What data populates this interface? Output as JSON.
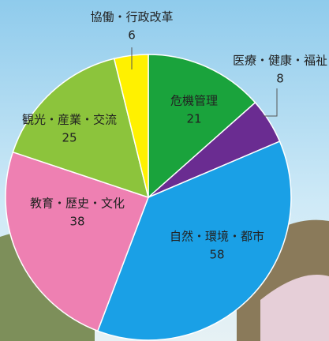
{
  "chart_data": {
    "type": "pie",
    "categories": [
      "危機管理",
      "医療・健康・福祉",
      "自然・環境・都市",
      "教育・歴史・文化",
      "観光・産業・交流",
      "協働・行政改革"
    ],
    "values": [
      21,
      8,
      58,
      38,
      25,
      6
    ],
    "colors": [
      "#1aa33c",
      "#6a2c91",
      "#1aa0e6",
      "#ee80b2",
      "#8cc43c",
      "#fff100"
    ]
  }
}
